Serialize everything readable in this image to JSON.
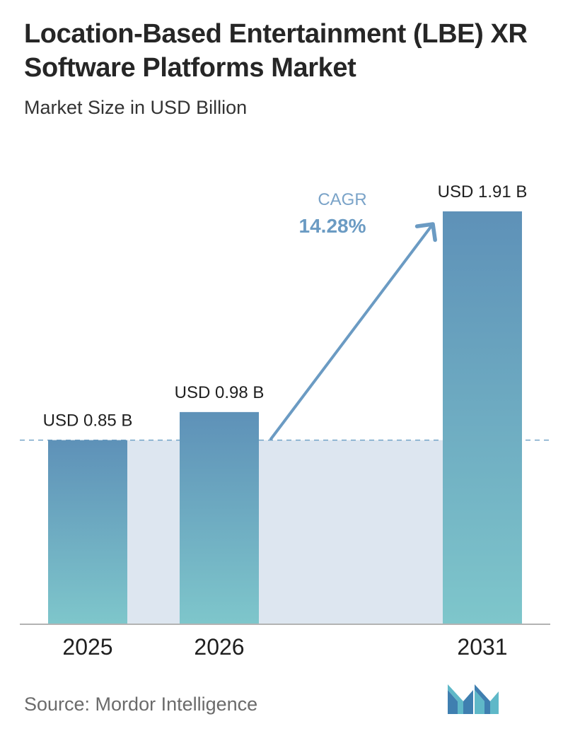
{
  "header": {
    "title": "Location-Based Entertainment (LBE) XR Software Platforms Market",
    "subtitle": "Market Size in USD Billion"
  },
  "chart_data": {
    "type": "bar",
    "categories": [
      "2025",
      "2026",
      "2031"
    ],
    "values": [
      0.85,
      0.98,
      1.91
    ],
    "value_labels": [
      "USD 0.85 B",
      "USD 0.98 B",
      "USD 1.91 B"
    ],
    "title": "Location-Based Entertainment (LBE) XR Software Platforms Market",
    "subtitle": "Market Size in USD Billion",
    "ylim": [
      0,
      1.91
    ],
    "grid": false,
    "reference_line_value": 0.85,
    "cagr_label": "CAGR",
    "cagr_value": "14.28%",
    "colors": {
      "bar_top": "#5e91b8",
      "bar_bottom": "#7ec6cb",
      "shade": "#dde6f0",
      "arrow": "#6b9bc3",
      "cagr_label": "#7aa3c8",
      "cagr_value": "#6b9bc3",
      "reference_line": "#6a9ec3",
      "axis": "#9a9a9a"
    }
  },
  "footer": {
    "source": "Source: Mordor Intelligence",
    "logo_icon": "mordor-intelligence-logo-icon"
  }
}
